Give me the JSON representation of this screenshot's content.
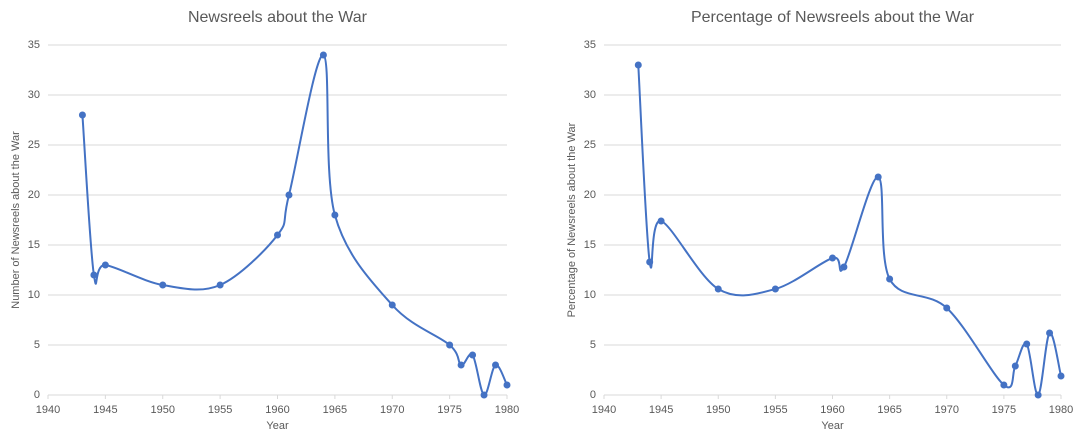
{
  "chart_data": [
    {
      "type": "line",
      "title": "Newsreels about the War",
      "x_label": "Year",
      "y_label": "Number of Newsreels about the War",
      "x": [
        1943,
        1944,
        1945,
        1950,
        1955,
        1960,
        1961,
        1964,
        1965,
        1970,
        1975,
        1976,
        1977,
        1978,
        1979,
        1980
      ],
      "values": [
        28,
        12,
        13,
        11,
        11,
        16,
        20,
        34,
        18,
        9,
        5,
        3,
        4,
        0,
        3,
        1
      ],
      "color": "#4472c4",
      "xlim": [
        1940,
        1980
      ],
      "xticks": [
        1940,
        1945,
        1950,
        1955,
        1960,
        1965,
        1970,
        1975,
        1980
      ],
      "ylim": [
        0,
        35
      ],
      "yticks": [
        0,
        5,
        10,
        15,
        20,
        25,
        30,
        35
      ],
      "grid": true
    },
    {
      "type": "line",
      "title": "Percentage of Newsreels about the War",
      "x_label": "Year",
      "y_label": "Percentage of Newsreels about the War",
      "x": [
        1943,
        1944,
        1945,
        1950,
        1955,
        1960,
        1961,
        1964,
        1965,
        1970,
        1975,
        1976,
        1977,
        1978,
        1979,
        1980
      ],
      "values": [
        33,
        13.3,
        17.4,
        10.6,
        10.6,
        13.7,
        12.8,
        21.8,
        11.6,
        8.7,
        1,
        2.9,
        5.1,
        0,
        6.2,
        1.9
      ],
      "color": "#4472c4",
      "xlim": [
        1940,
        1980
      ],
      "xticks": [
        1940,
        1945,
        1950,
        1955,
        1960,
        1965,
        1970,
        1975,
        1980
      ],
      "ylim": [
        0,
        35
      ],
      "yticks": [
        0,
        5,
        10,
        15,
        20,
        25,
        30,
        35
      ],
      "grid": true
    }
  ]
}
